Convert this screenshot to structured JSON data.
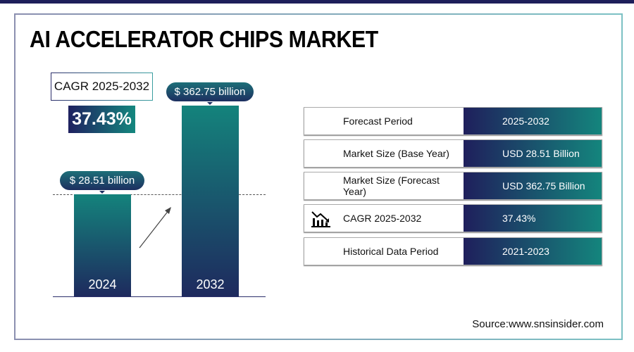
{
  "title": "AI ACCELERATOR CHIPS MARKET",
  "cagr": {
    "label": "CAGR 2025-2032",
    "value": "37.43%"
  },
  "chart_data": {
    "type": "bar",
    "categories": [
      "2024",
      "2032"
    ],
    "values": [
      28.51,
      362.75
    ],
    "data_labels": [
      "$ 28.51 billion",
      "$ 362.75 billion"
    ],
    "unit": "USD billion"
  },
  "table": [
    {
      "key": "Forecast Period",
      "value": "2025-2032"
    },
    {
      "key": "Market Size (Base Year)",
      "value": "USD 28.51 Billion"
    },
    {
      "key": "Market Size (Forecast Year)",
      "value": "USD 362.75 Billion"
    },
    {
      "key": "CAGR 2025-2032",
      "value": "37.43%",
      "icon": "chart-decline-icon"
    },
    {
      "key": "Historical Data Period",
      "value": "2021-2023"
    }
  ],
  "source": "Source:www.snsinsider.com",
  "colors": {
    "navy": "#1f1f5c",
    "teal": "#14857d"
  }
}
